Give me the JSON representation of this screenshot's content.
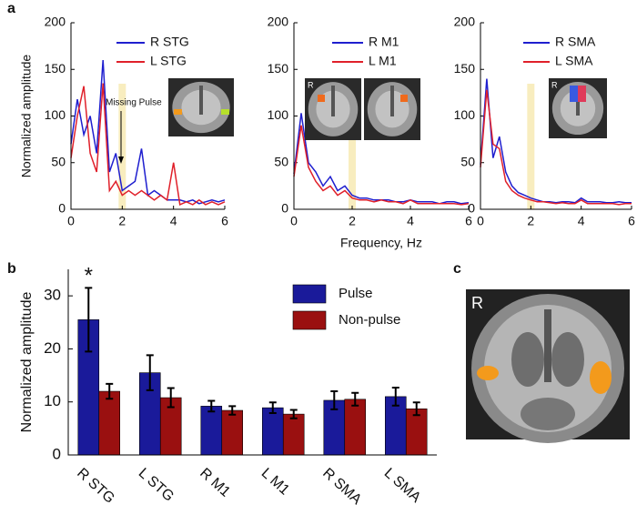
{
  "panel_labels": [
    "a",
    "b",
    "c"
  ],
  "image": {
    "label": "R"
  },
  "chart_data": [
    {
      "type": "line",
      "y_label": "Normalized amplitude",
      "annotation": "Missing Pulse",
      "highlight_x": 2,
      "x": [
        0,
        0.25,
        0.5,
        0.75,
        1,
        1.25,
        1.5,
        1.75,
        2,
        2.25,
        2.5,
        2.75,
        3,
        3.25,
        3.5,
        3.75,
        4,
        4.25,
        4.5,
        4.75,
        5,
        5.25,
        5.5,
        5.75,
        6
      ],
      "series": [
        {
          "name": "R STG",
          "color": "#1f1fcf",
          "values": [
            70,
            118,
            80,
            100,
            60,
            160,
            40,
            60,
            20,
            25,
            30,
            65,
            15,
            20,
            15,
            10,
            10,
            10,
            8,
            10,
            6,
            8,
            10,
            8,
            10
          ]
        },
        {
          "name": "L STG",
          "color": "#e0202a",
          "values": [
            55,
            100,
            132,
            60,
            40,
            135,
            20,
            30,
            15,
            20,
            15,
            20,
            15,
            10,
            15,
            10,
            50,
            5,
            8,
            5,
            10,
            5,
            8,
            5,
            8
          ]
        }
      ],
      "xlim": [
        0,
        6
      ],
      "ylim": [
        0,
        200
      ],
      "xticks": [
        0,
        2,
        4,
        6
      ],
      "yticks": [
        0,
        50,
        100,
        150,
        200
      ]
    },
    {
      "type": "line",
      "x_label": "Frequency, Hz",
      "highlight_x": 2,
      "inset_label": "R",
      "x": [
        0,
        0.25,
        0.5,
        0.75,
        1,
        1.25,
        1.5,
        1.75,
        2,
        2.25,
        2.5,
        2.75,
        3,
        3.25,
        3.5,
        3.75,
        4,
        4.25,
        4.5,
        4.75,
        5,
        5.25,
        5.5,
        5.75,
        6
      ],
      "series": [
        {
          "name": "R M1",
          "color": "#1f1fcf",
          "values": [
            38,
            103,
            50,
            40,
            25,
            35,
            20,
            25,
            15,
            12,
            12,
            10,
            10,
            10,
            8,
            8,
            10,
            8,
            8,
            8,
            6,
            8,
            8,
            6,
            7
          ]
        },
        {
          "name": "L M1",
          "color": "#e0202a",
          "values": [
            35,
            90,
            45,
            30,
            20,
            25,
            15,
            20,
            12,
            10,
            10,
            8,
            10,
            8,
            8,
            6,
            10,
            6,
            6,
            6,
            6,
            6,
            6,
            5,
            6
          ]
        }
      ],
      "xlim": [
        0,
        6
      ],
      "ylim": [
        0,
        200
      ],
      "xticks": [
        0,
        2,
        4,
        6
      ],
      "yticks": [
        0,
        50,
        100,
        150,
        200
      ]
    },
    {
      "type": "line",
      "highlight_x": 2,
      "inset_label": "R",
      "x": [
        0,
        0.25,
        0.5,
        0.75,
        1,
        1.25,
        1.5,
        1.75,
        2,
        2.25,
        2.5,
        2.75,
        3,
        3.25,
        3.5,
        3.75,
        4,
        4.25,
        4.5,
        4.75,
        5,
        5.25,
        5.5,
        5.75,
        6
      ],
      "series": [
        {
          "name": "R SMA",
          "color": "#1f1fcf",
          "values": [
            48,
            140,
            55,
            78,
            40,
            25,
            18,
            15,
            12,
            10,
            8,
            8,
            7,
            8,
            8,
            7,
            12,
            8,
            8,
            8,
            7,
            7,
            8,
            7,
            7
          ]
        },
        {
          "name": "L SMA",
          "color": "#e0202a",
          "values": [
            45,
            128,
            70,
            65,
            30,
            20,
            15,
            12,
            10,
            8,
            8,
            7,
            6,
            7,
            6,
            6,
            10,
            6,
            6,
            6,
            6,
            6,
            5,
            6,
            6
          ]
        }
      ],
      "xlim": [
        0,
        6
      ],
      "ylim": [
        0,
        200
      ],
      "xticks": [
        0,
        2,
        4,
        6
      ],
      "yticks": [
        0,
        50,
        100,
        150,
        200
      ]
    },
    {
      "type": "bar",
      "y_label": "Normalized amplitude",
      "annotation": "*",
      "categories": [
        "R STG",
        "L STG",
        "R M1",
        "L M1",
        "R SMA",
        "L SMA"
      ],
      "series": [
        {
          "name": "Pulse",
          "color": "#1a1a9a",
          "values": [
            25.5,
            15.5,
            9.2,
            8.9,
            10.3,
            11.0
          ],
          "errors": [
            6,
            3.3,
            1.0,
            1.0,
            1.7,
            1.7
          ]
        },
        {
          "name": "Non-pulse",
          "color": "#9a1010",
          "values": [
            12,
            10.8,
            8.4,
            7.7,
            10.5,
            8.7
          ],
          "errors": [
            1.4,
            1.8,
            0.8,
            0.8,
            1.2,
            1.2
          ]
        }
      ],
      "ylim": [
        0,
        35
      ],
      "yticks": [
        0,
        10,
        20,
        30
      ]
    }
  ]
}
